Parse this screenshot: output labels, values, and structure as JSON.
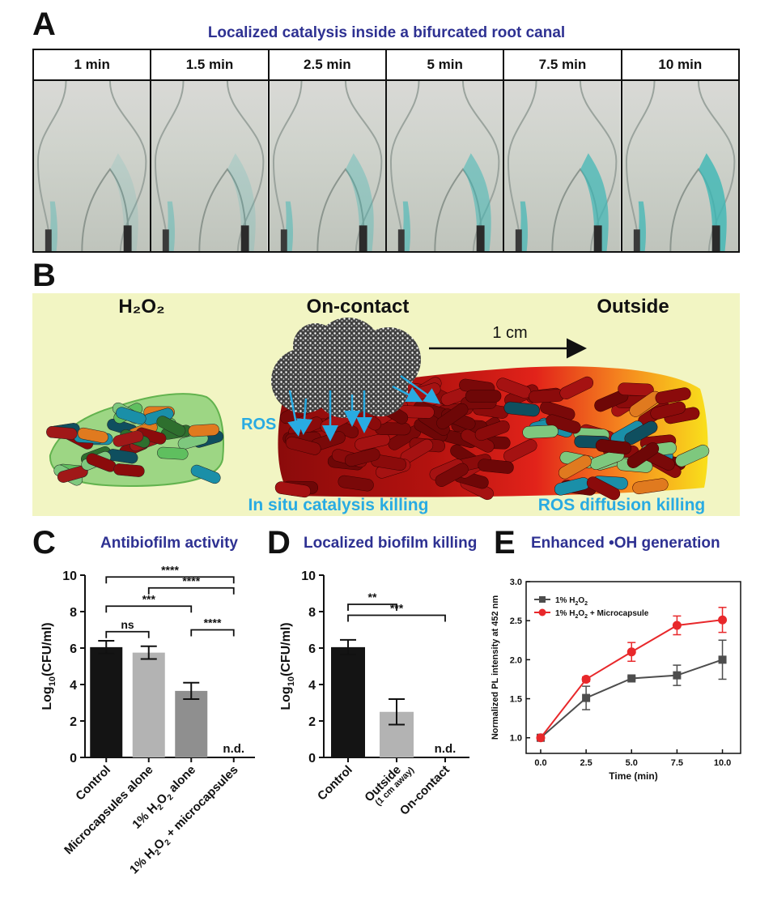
{
  "panelA": {
    "label": "A",
    "title": "Localized catalysis inside a bifurcated root canal",
    "frames": [
      {
        "time": "1 min",
        "blue": 0.15
      },
      {
        "time": "1.5 min",
        "blue": 0.2
      },
      {
        "time": "2.5 min",
        "blue": 0.4
      },
      {
        "time": "5 min",
        "blue": 0.6
      },
      {
        "time": "7.5 min",
        "blue": 0.8
      },
      {
        "time": "10 min",
        "blue": 0.9
      }
    ]
  },
  "panelB": {
    "label": "B",
    "h2o2": "H₂O₂",
    "oncontact": "On-contact",
    "outside": "Outside",
    "scale": "1 cm",
    "ros": "ROS",
    "insitu": "In situ catalysis killing",
    "diffusion": "ROS diffusion killing"
  },
  "panelC": {
    "label": "C",
    "title": "Antibiofilm activity"
  },
  "panelD": {
    "label": "D",
    "title": "Localized biofilm killing"
  },
  "panelE": {
    "label": "E",
    "title": "Enhanced •OH generation"
  },
  "colors": {
    "title": "#2e3192",
    "cyan": "#29abe2",
    "bg": "#f2f5c3"
  },
  "chart_data": [
    {
      "type": "bar",
      "ylabel": "Log10(CFU/ml)",
      "ylim": [
        0,
        10
      ],
      "yticks": [
        0,
        2,
        4,
        6,
        8,
        10
      ],
      "categories": [
        "Control",
        "Microcapsules alone",
        "1% H2O2 alone",
        "1% H2O2 + microcapsules"
      ],
      "values": [
        6.05,
        5.75,
        3.65,
        null
      ],
      "errors": [
        0.35,
        0.35,
        0.45,
        null
      ],
      "colors": [
        "#141414",
        "#b3b3b3",
        "#8f8f8f",
        "#ffffff"
      ],
      "nd_label": "n.d.",
      "significance": [
        {
          "from": 0,
          "to": 1,
          "label": "ns"
        },
        {
          "from": 0,
          "to": 2,
          "label": "***"
        },
        {
          "from": 2,
          "to": 3,
          "label": "****"
        },
        {
          "from": 1,
          "to": 3,
          "label": "****"
        },
        {
          "from": 0,
          "to": 3,
          "label": "****"
        }
      ]
    },
    {
      "type": "bar",
      "ylabel": "Log10(CFU/ml)",
      "ylim": [
        0,
        10
      ],
      "yticks": [
        0,
        2,
        4,
        6,
        8,
        10
      ],
      "categories": [
        "Control",
        "Outside",
        "On-contact"
      ],
      "subtitle": "(1 cm away)",
      "values": [
        6.05,
        2.5,
        null
      ],
      "errors": [
        0.4,
        0.7,
        null
      ],
      "colors": [
        "#141414",
        "#b3b3b3",
        "#ffffff"
      ],
      "nd_label": "n.d.",
      "significance": [
        {
          "from": 0,
          "to": 1,
          "label": "**"
        },
        {
          "from": 0,
          "to": 2,
          "label": "***"
        }
      ]
    },
    {
      "type": "line",
      "xlabel": "Time (min)",
      "ylabel": "Normalized PL intensity at 452 nm",
      "xlim": [
        -0.8,
        11
      ],
      "ylim": [
        0.8,
        3.0
      ],
      "xticks": [
        "0.0",
        "2.5",
        "5.0",
        "7.5",
        "10.0"
      ],
      "yticks": [
        "1.0",
        "1.5",
        "2.0",
        "2.5",
        "3.0"
      ],
      "x": [
        0,
        2.5,
        5,
        7.5,
        10
      ],
      "series": [
        {
          "name": "1% H2O2",
          "color": "#4d4d4d",
          "marker": "square",
          "values": [
            1.0,
            1.51,
            1.76,
            1.8,
            2.0
          ],
          "errors": [
            0,
            0.15,
            0.02,
            0.13,
            0.25
          ]
        },
        {
          "name": "1% H2O2 + Microcapsule",
          "color": "#e8282b",
          "marker": "circle",
          "values": [
            1.0,
            1.75,
            2.1,
            2.44,
            2.51
          ],
          "errors": [
            0,
            0.03,
            0.12,
            0.12,
            0.16
          ]
        }
      ]
    }
  ]
}
